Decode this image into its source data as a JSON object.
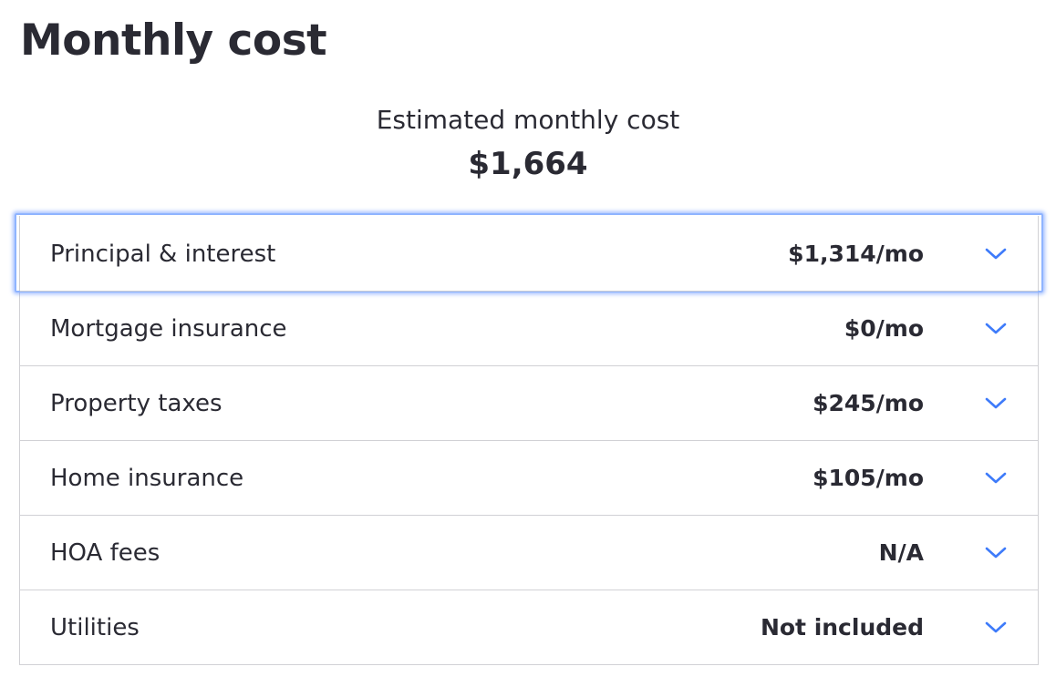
{
  "header": {
    "title": "Monthly cost"
  },
  "summary": {
    "label": "Estimated monthly cost",
    "value": "$1,664"
  },
  "costs": [
    {
      "label": "Principal & interest",
      "value": "$1,314/mo"
    },
    {
      "label": "Mortgage insurance",
      "value": "$0/mo"
    },
    {
      "label": "Property taxes",
      "value": "$245/mo"
    },
    {
      "label": "Home insurance",
      "value": "$105/mo"
    },
    {
      "label": "HOA fees",
      "value": "N/A"
    },
    {
      "label": "Utilities",
      "value": "Not included"
    }
  ],
  "colors": {
    "text": "#2a2a33",
    "chevron": "#3e7bfa",
    "border": "#d1d1d5",
    "focus_ring": "#8fb4ff"
  },
  "icons": {
    "row_toggle": "chevron-down-icon"
  }
}
